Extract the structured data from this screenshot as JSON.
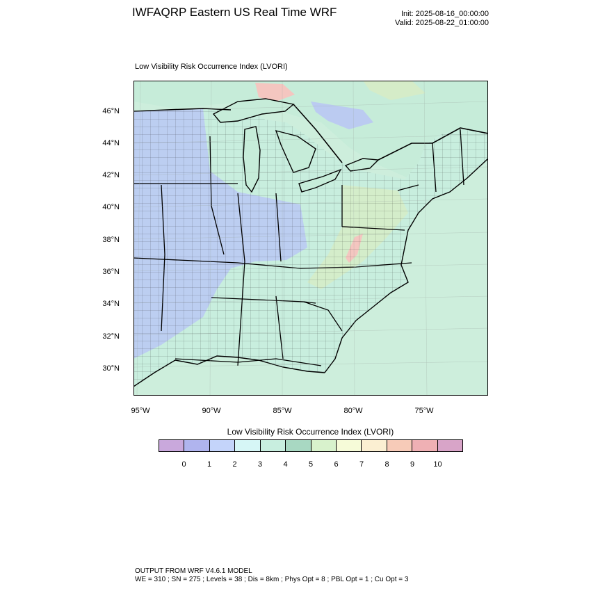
{
  "header": {
    "title": "IWFAQRP Eastern US Real Time WRF",
    "init": "Init: 2025-08-16_00:00:00",
    "valid": "Valid: 2025-08-22_01:00:00"
  },
  "map": {
    "label": "Low Visibility Risk Occurrence Index   (LVORI)",
    "lat_ticks": [
      "46°N",
      "44°N",
      "42°N",
      "40°N",
      "38°N",
      "36°N",
      "34°N",
      "32°N",
      "30°N"
    ],
    "lon_ticks": [
      "95°W",
      "90°W",
      "85°W",
      "80°W",
      "75°W"
    ],
    "colors": {
      "land_base": "#c8eede",
      "lake": "#c6ecd9",
      "ocean": "#cdeedc",
      "low_risk_blue": "#b9c6f5",
      "mid_risk_green": "#d5ecc8",
      "high_risk_pink": "#f4c6c0"
    }
  },
  "legend": {
    "title": "Low Visibility Risk Occurrence Index  (LVORI)",
    "labels": [
      "0",
      "1",
      "2",
      "3",
      "4",
      "5",
      "6",
      "7",
      "8",
      "9",
      "10"
    ],
    "colors": [
      "#c9a8dc",
      "#b0b4ee",
      "#c4d4fa",
      "#d6f6f6",
      "#c8eedf",
      "#a8d8c2",
      "#d8f2cc",
      "#f6fbd8",
      "#fbefd2",
      "#f7cbb8",
      "#efb0b4",
      "#d8a4c8"
    ]
  },
  "footer": {
    "line1": "OUTPUT FROM WRF V4.6.1 MODEL",
    "line2": "WE = 310 ; SN = 275 ; Levels = 38 ; Dis = 8km ; Phys Opt = 8 ; PBL Opt = 1 ; Cu Opt = 3"
  }
}
